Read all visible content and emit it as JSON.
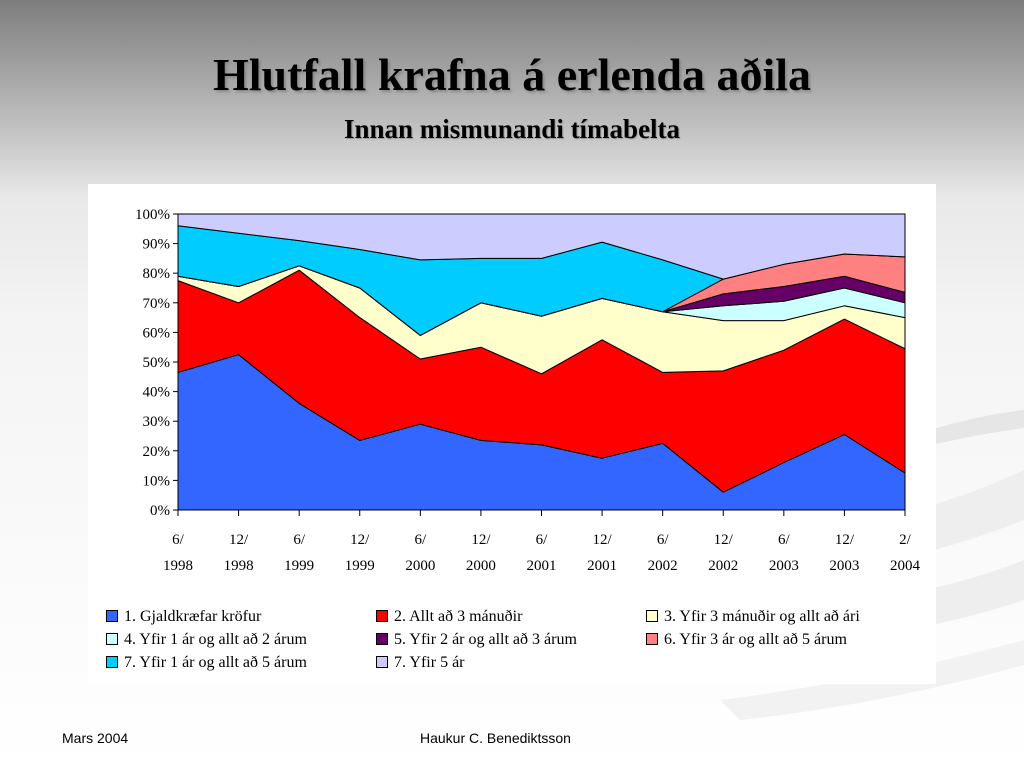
{
  "slide": {
    "title": "Hlutfall krafna á erlenda aðila",
    "subtitle": "Innan mismunandi tímabelta",
    "footer_left": "Mars 2004",
    "footer_center": "Haukur C. Benediktsson"
  },
  "chart_data": {
    "type": "area",
    "stacked": true,
    "categories": [
      "6/\n1998",
      "12/\n1998",
      "6/\n1999",
      "12/\n1999",
      "6/\n2000",
      "12/\n2000",
      "6/\n2001",
      "12/\n2001",
      "6/\n2002",
      "12/\n2002",
      "6/\n2003",
      "12/\n2003",
      "2/\n2004"
    ],
    "y_tick_labels": [
      "0%",
      "10%",
      "20%",
      "30%",
      "40%",
      "50%",
      "60%",
      "70%",
      "80%",
      "90%",
      "100%"
    ],
    "ylim": [
      0,
      100
    ],
    "y_unit": "%",
    "grid": false,
    "legend_position": "bottom",
    "series": [
      {
        "name": "1. Gjaldkræfar kröfur",
        "color": "#3366ff",
        "values": [
          46.5,
          52.5,
          36,
          23.5,
          29,
          23.5,
          22,
          17.5,
          22.5,
          6,
          16,
          25.5,
          12.5
        ]
      },
      {
        "name": "2. Allt að 3 mánuðir",
        "color": "#ff0000",
        "values": [
          31,
          17.5,
          45,
          41.5,
          22,
          31.5,
          24,
          40,
          24,
          41,
          38,
          39,
          42
        ]
      },
      {
        "name": "3. Yfir 3 mánuðir og allt að ári",
        "color": "#ffffcc",
        "values": [
          1.5,
          5.5,
          1.5,
          10,
          8,
          15,
          19.5,
          14,
          20.5,
          17,
          10,
          4.5,
          10.5
        ]
      },
      {
        "name": "4. Yfir 1 ár og allt að 2 árum",
        "color": "#ccffff",
        "values": [
          0,
          0,
          0,
          0,
          0,
          0,
          0,
          0,
          0,
          5,
          6.5,
          6,
          5
        ]
      },
      {
        "name": "5. Yfir 2 ár og allt að 3 árum",
        "color": "#660066",
        "values": [
          0,
          0,
          0,
          0,
          0,
          0,
          0,
          0,
          0,
          4,
          5,
          4,
          3.5
        ]
      },
      {
        "name": "6. Yfir 3 ár og allt að 5 árum",
        "color": "#ff8080",
        "values": [
          0,
          0,
          0,
          0,
          0,
          0,
          0,
          0,
          0,
          5,
          7.5,
          7.5,
          12
        ]
      },
      {
        "name": "7. Yfir 1 ár og allt að 5 árum",
        "color": "#00ccff",
        "values": [
          17,
          18,
          8.5,
          13,
          25.5,
          15,
          19.5,
          19,
          17.5,
          0,
          0,
          0,
          0
        ]
      },
      {
        "name": "7. Yfir 5 ár",
        "color": "#ccccff",
        "values": [
          4,
          6.5,
          9,
          12,
          15.5,
          15,
          15,
          9.5,
          15.5,
          22,
          17,
          13.5,
          14.5
        ]
      }
    ]
  }
}
